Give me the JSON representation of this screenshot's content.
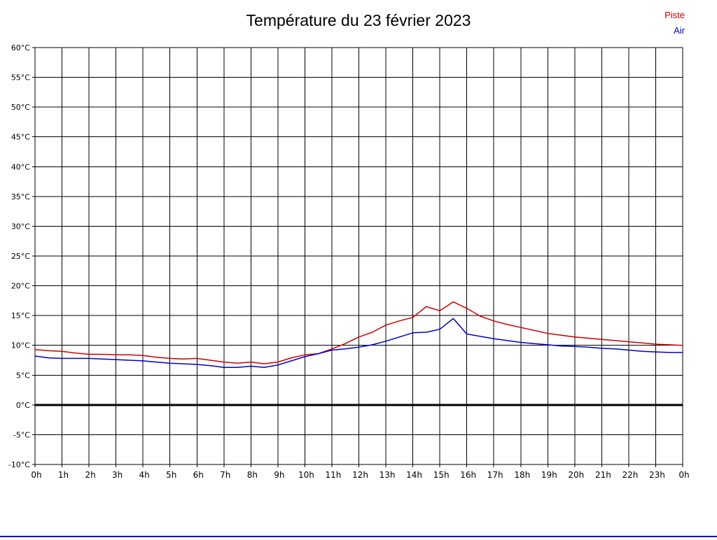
{
  "page": {
    "title": "Température du 23 février 2023"
  },
  "colors": {
    "piste": "#cc0000",
    "air": "#0000cc",
    "grid": "#000000",
    "zero_line": "#000000",
    "bottom_border": "#0000bb"
  },
  "chart_data": {
    "type": "line",
    "title": "Température du 23 février 2023",
    "xlabel": "",
    "ylabel": "",
    "xlim": [
      0,
      24
    ],
    "ylim": [
      -10,
      60
    ],
    "y_tick_step": 5,
    "grid": true,
    "zero_line": true,
    "legend_position": "top-right",
    "x_tick_labels": [
      "0h",
      "1h",
      "2h",
      "3h",
      "4h",
      "5h",
      "6h",
      "7h",
      "8h",
      "9h",
      "10h",
      "11h",
      "12h",
      "13h",
      "14h",
      "15h",
      "16h",
      "17h",
      "18h",
      "19h",
      "20h",
      "21h",
      "22h",
      "23h",
      "0h"
    ],
    "y_tick_labels": [
      "60°C",
      "55°C",
      "50°C",
      "45°C",
      "40°C",
      "35°C",
      "30°C",
      "25°C",
      "20°C",
      "15°C",
      "10°C",
      "5°C",
      "0°C",
      "-5°C",
      "-10°C"
    ],
    "x": [
      0,
      0.5,
      1,
      1.5,
      2,
      2.5,
      3,
      3.5,
      4,
      4.5,
      5,
      5.5,
      6,
      6.5,
      7,
      7.5,
      8,
      8.5,
      9,
      9.5,
      10,
      10.5,
      11,
      11.5,
      12,
      12.5,
      13,
      13.5,
      14,
      14.5,
      15,
      15.5,
      16,
      16.5,
      17,
      17.5,
      18,
      18.5,
      19,
      19.5,
      20,
      20.5,
      21,
      21.5,
      22,
      22.5,
      23,
      23.5,
      24
    ],
    "series": [
      {
        "name": "Piste",
        "color": "#cc0000",
        "values": [
          9.3,
          9.1,
          9.0,
          8.7,
          8.5,
          8.5,
          8.4,
          8.4,
          8.3,
          8.0,
          7.8,
          7.7,
          7.8,
          7.5,
          7.2,
          7.0,
          7.2,
          6.9,
          7.2,
          7.9,
          8.4,
          8.6,
          9.4,
          10.3,
          11.4,
          12.2,
          13.4,
          14.1,
          14.7,
          16.5,
          15.8,
          17.3,
          16.2,
          14.9,
          14.1,
          13.5,
          13.0,
          12.5,
          12.0,
          11.7,
          11.4,
          11.2,
          11.0,
          10.8,
          10.6,
          10.4,
          10.2,
          10.1,
          10.0
        ]
      },
      {
        "name": "Air",
        "color": "#0000cc",
        "values": [
          8.2,
          7.9,
          7.8,
          7.8,
          7.8,
          7.7,
          7.6,
          7.5,
          7.4,
          7.2,
          7.0,
          6.9,
          6.8,
          6.6,
          6.3,
          6.3,
          6.5,
          6.3,
          6.7,
          7.4,
          8.1,
          8.6,
          9.2,
          9.4,
          9.7,
          10.1,
          10.7,
          11.4,
          12.1,
          12.2,
          12.7,
          14.5,
          11.9,
          11.5,
          11.1,
          10.8,
          10.5,
          10.3,
          10.1,
          9.9,
          9.8,
          9.7,
          9.5,
          9.4,
          9.2,
          9.0,
          8.9,
          8.8,
          8.8
        ]
      }
    ]
  }
}
